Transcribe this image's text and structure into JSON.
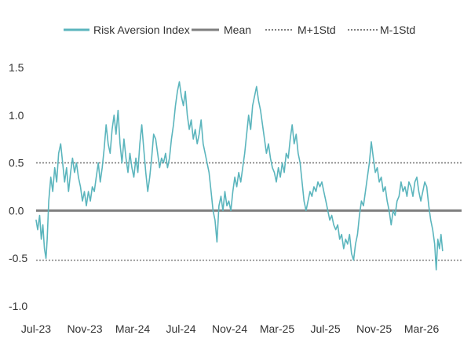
{
  "chart_data": {
    "type": "line",
    "title": "",
    "xlabel": "",
    "ylabel": "",
    "ylim": [
      -1.0,
      1.5
    ],
    "yticks": [
      -1.0,
      -0.5,
      0.0,
      0.5,
      1.0,
      1.5
    ],
    "ytick_labels": [
      "-1.0",
      "-0.5",
      "0.0",
      "0.5",
      "1.0",
      "1.5"
    ],
    "xlim": [
      "2023-07-01",
      "2026-06-10"
    ],
    "xticks": [
      {
        "label": "Jul-23",
        "date": "2023-07-01"
      },
      {
        "label": "Nov-23",
        "date": "2023-11-01"
      },
      {
        "label": "Mar-24",
        "date": "2024-03-01"
      },
      {
        "label": "Jul-24",
        "date": "2024-07-01"
      },
      {
        "label": "Nov-24",
        "date": "2024-11-01"
      },
      {
        "label": "Mar-25",
        "date": "2025-03-01"
      },
      {
        "label": "Jul-25",
        "date": "2025-07-01"
      },
      {
        "label": "Nov-25",
        "date": "2025-11-01"
      },
      {
        "label": "Mar-26",
        "date": "2026-03-01"
      }
    ],
    "grid": false,
    "legend_position": "top",
    "series": [
      {
        "name": "Risk Aversion Index",
        "color": "#5BB5BD",
        "style": "solid",
        "points": [
          [
            "2023-07-01",
            -0.1
          ],
          [
            "2023-07-05",
            -0.2
          ],
          [
            "2023-07-10",
            -0.05
          ],
          [
            "2023-07-14",
            -0.3
          ],
          [
            "2023-07-18",
            -0.15
          ],
          [
            "2023-07-22",
            -0.4
          ],
          [
            "2023-07-26",
            -0.5
          ],
          [
            "2023-07-29",
            -0.3
          ],
          [
            "2023-08-02",
            0.1
          ],
          [
            "2023-08-07",
            0.35
          ],
          [
            "2023-08-12",
            0.2
          ],
          [
            "2023-08-17",
            0.45
          ],
          [
            "2023-08-22",
            0.3
          ],
          [
            "2023-08-27",
            0.6
          ],
          [
            "2023-09-01",
            0.7
          ],
          [
            "2023-09-06",
            0.5
          ],
          [
            "2023-09-11",
            0.3
          ],
          [
            "2023-09-16",
            0.45
          ],
          [
            "2023-09-21",
            0.2
          ],
          [
            "2023-09-26",
            0.4
          ],
          [
            "2023-10-01",
            0.55
          ],
          [
            "2023-10-06",
            0.4
          ],
          [
            "2023-10-11",
            0.5
          ],
          [
            "2023-10-16",
            0.35
          ],
          [
            "2023-10-21",
            0.25
          ],
          [
            "2023-10-26",
            0.1
          ],
          [
            "2023-10-31",
            0.2
          ],
          [
            "2023-11-05",
            0.05
          ],
          [
            "2023-11-10",
            0.2
          ],
          [
            "2023-11-15",
            0.1
          ],
          [
            "2023-11-20",
            0.25
          ],
          [
            "2023-11-25",
            0.2
          ],
          [
            "2023-11-30",
            0.35
          ],
          [
            "2023-12-05",
            0.5
          ],
          [
            "2023-12-10",
            0.3
          ],
          [
            "2023-12-15",
            0.45
          ],
          [
            "2023-12-20",
            0.65
          ],
          [
            "2023-12-25",
            0.9
          ],
          [
            "2023-12-30",
            0.7
          ],
          [
            "2024-01-04",
            0.6
          ],
          [
            "2024-01-09",
            0.85
          ],
          [
            "2024-01-14",
            1.0
          ],
          [
            "2024-01-19",
            0.8
          ],
          [
            "2024-01-24",
            1.05
          ],
          [
            "2024-01-29",
            0.7
          ],
          [
            "2024-02-03",
            0.5
          ],
          [
            "2024-02-08",
            0.75
          ],
          [
            "2024-02-13",
            0.55
          ],
          [
            "2024-02-18",
            0.4
          ],
          [
            "2024-02-23",
            0.6
          ],
          [
            "2024-02-28",
            0.45
          ],
          [
            "2024-03-04",
            0.35
          ],
          [
            "2024-03-09",
            0.55
          ],
          [
            "2024-03-14",
            0.4
          ],
          [
            "2024-03-19",
            0.7
          ],
          [
            "2024-03-24",
            0.9
          ],
          [
            "2024-03-29",
            0.65
          ],
          [
            "2024-04-03",
            0.4
          ],
          [
            "2024-04-08",
            0.2
          ],
          [
            "2024-04-13",
            0.35
          ],
          [
            "2024-04-18",
            0.55
          ],
          [
            "2024-04-23",
            0.8
          ],
          [
            "2024-04-28",
            0.75
          ],
          [
            "2024-05-03",
            0.6
          ],
          [
            "2024-05-08",
            0.45
          ],
          [
            "2024-05-13",
            0.55
          ],
          [
            "2024-05-18",
            0.5
          ],
          [
            "2024-05-23",
            0.6
          ],
          [
            "2024-05-28",
            0.45
          ],
          [
            "2024-06-02",
            0.55
          ],
          [
            "2024-06-07",
            0.75
          ],
          [
            "2024-06-12",
            0.9
          ],
          [
            "2024-06-17",
            1.1
          ],
          [
            "2024-06-22",
            1.25
          ],
          [
            "2024-06-27",
            1.35
          ],
          [
            "2024-07-02",
            1.2
          ],
          [
            "2024-07-07",
            1.1
          ],
          [
            "2024-07-12",
            1.25
          ],
          [
            "2024-07-17",
            1.0
          ],
          [
            "2024-07-22",
            0.85
          ],
          [
            "2024-07-27",
            0.95
          ],
          [
            "2024-08-01",
            0.75
          ],
          [
            "2024-08-06",
            0.85
          ],
          [
            "2024-08-11",
            0.7
          ],
          [
            "2024-08-16",
            0.8
          ],
          [
            "2024-08-21",
            0.95
          ],
          [
            "2024-08-26",
            0.7
          ],
          [
            "2024-08-31",
            0.6
          ],
          [
            "2024-09-05",
            0.5
          ],
          [
            "2024-09-10",
            0.4
          ],
          [
            "2024-09-15",
            0.2
          ],
          [
            "2024-09-20",
            0.0
          ],
          [
            "2024-09-25",
            -0.1
          ],
          [
            "2024-09-30",
            -0.33
          ],
          [
            "2024-10-05",
            0.05
          ],
          [
            "2024-10-10",
            0.15
          ],
          [
            "2024-10-15",
            0.0
          ],
          [
            "2024-10-20",
            0.2
          ],
          [
            "2024-10-25",
            0.05
          ],
          [
            "2024-10-30",
            0.1
          ],
          [
            "2024-11-04",
            0.0
          ],
          [
            "2024-11-09",
            0.2
          ],
          [
            "2024-11-14",
            0.35
          ],
          [
            "2024-11-19",
            0.25
          ],
          [
            "2024-11-24",
            0.4
          ],
          [
            "2024-11-29",
            0.3
          ],
          [
            "2024-12-04",
            0.45
          ],
          [
            "2024-12-09",
            0.6
          ],
          [
            "2024-12-14",
            0.8
          ],
          [
            "2024-12-19",
            1.0
          ],
          [
            "2024-12-24",
            0.85
          ],
          [
            "2024-12-29",
            1.1
          ],
          [
            "2025-01-03",
            1.2
          ],
          [
            "2025-01-08",
            1.3
          ],
          [
            "2025-01-13",
            1.15
          ],
          [
            "2025-01-18",
            1.05
          ],
          [
            "2025-01-23",
            0.9
          ],
          [
            "2025-01-28",
            0.75
          ],
          [
            "2025-02-02",
            0.6
          ],
          [
            "2025-02-07",
            0.7
          ],
          [
            "2025-02-12",
            0.55
          ],
          [
            "2025-02-17",
            0.45
          ],
          [
            "2025-02-22",
            0.4
          ],
          [
            "2025-02-27",
            0.3
          ],
          [
            "2025-03-04",
            0.45
          ],
          [
            "2025-03-09",
            0.35
          ],
          [
            "2025-03-14",
            0.5
          ],
          [
            "2025-03-19",
            0.4
          ],
          [
            "2025-03-24",
            0.6
          ],
          [
            "2025-03-29",
            0.55
          ],
          [
            "2025-04-03",
            0.75
          ],
          [
            "2025-04-08",
            0.9
          ],
          [
            "2025-04-13",
            0.7
          ],
          [
            "2025-04-18",
            0.8
          ],
          [
            "2025-04-23",
            0.6
          ],
          [
            "2025-04-28",
            0.5
          ],
          [
            "2025-05-03",
            0.3
          ],
          [
            "2025-05-08",
            0.1
          ],
          [
            "2025-05-13",
            0.0
          ],
          [
            "2025-05-18",
            0.1
          ],
          [
            "2025-05-23",
            0.2
          ],
          [
            "2025-05-28",
            0.15
          ],
          [
            "2025-06-02",
            0.25
          ],
          [
            "2025-06-07",
            0.2
          ],
          [
            "2025-06-12",
            0.3
          ],
          [
            "2025-06-17",
            0.25
          ],
          [
            "2025-06-22",
            0.3
          ],
          [
            "2025-06-27",
            0.2
          ],
          [
            "2025-07-02",
            0.1
          ],
          [
            "2025-07-07",
            0.0
          ],
          [
            "2025-07-12",
            -0.1
          ],
          [
            "2025-07-17",
            -0.05
          ],
          [
            "2025-07-22",
            -0.15
          ],
          [
            "2025-07-27",
            -0.2
          ],
          [
            "2025-08-01",
            -0.15
          ],
          [
            "2025-08-06",
            -0.3
          ],
          [
            "2025-08-11",
            -0.25
          ],
          [
            "2025-08-16",
            -0.4
          ],
          [
            "2025-08-21",
            -0.3
          ],
          [
            "2025-08-26",
            -0.35
          ],
          [
            "2025-08-31",
            -0.25
          ],
          [
            "2025-09-05",
            -0.45
          ],
          [
            "2025-09-10",
            -0.52
          ],
          [
            "2025-09-15",
            -0.35
          ],
          [
            "2025-09-20",
            -0.25
          ],
          [
            "2025-09-25",
            -0.05
          ],
          [
            "2025-09-30",
            0.1
          ],
          [
            "2025-10-05",
            0.05
          ],
          [
            "2025-10-10",
            0.2
          ],
          [
            "2025-10-15",
            0.35
          ],
          [
            "2025-10-20",
            0.5
          ],
          [
            "2025-10-25",
            0.72
          ],
          [
            "2025-10-30",
            0.55
          ],
          [
            "2025-11-04",
            0.4
          ],
          [
            "2025-11-09",
            0.45
          ],
          [
            "2025-11-14",
            0.3
          ],
          [
            "2025-11-19",
            0.35
          ],
          [
            "2025-11-24",
            0.2
          ],
          [
            "2025-11-29",
            0.25
          ],
          [
            "2025-12-04",
            0.1
          ],
          [
            "2025-12-09",
            0.0
          ],
          [
            "2025-12-14",
            -0.15
          ],
          [
            "2025-12-19",
            0.0
          ],
          [
            "2025-12-24",
            -0.05
          ],
          [
            "2025-12-29",
            0.1
          ],
          [
            "2026-01-03",
            0.15
          ],
          [
            "2026-01-08",
            0.3
          ],
          [
            "2026-01-13",
            0.2
          ],
          [
            "2026-01-18",
            0.25
          ],
          [
            "2026-01-23",
            0.15
          ],
          [
            "2026-01-28",
            0.3
          ],
          [
            "2026-02-02",
            0.25
          ],
          [
            "2026-02-07",
            0.15
          ],
          [
            "2026-02-12",
            0.3
          ],
          [
            "2026-02-17",
            0.35
          ],
          [
            "2026-02-22",
            0.2
          ],
          [
            "2026-02-27",
            0.1
          ],
          [
            "2026-03-04",
            0.2
          ],
          [
            "2026-03-09",
            0.3
          ],
          [
            "2026-03-14",
            0.25
          ],
          [
            "2026-03-19",
            0.05
          ],
          [
            "2026-03-24",
            -0.1
          ],
          [
            "2026-03-29",
            -0.2
          ],
          [
            "2026-04-03",
            -0.35
          ],
          [
            "2026-04-07",
            -0.62
          ],
          [
            "2026-04-11",
            -0.3
          ],
          [
            "2026-04-15",
            -0.4
          ],
          [
            "2026-04-19",
            -0.25
          ],
          [
            "2026-04-23",
            -0.42
          ]
        ]
      },
      {
        "name": "Mean",
        "color": "#7F7F7F",
        "style": "solid",
        "value": 0.0
      },
      {
        "name": "M+1Std",
        "color": "#7F7F7F",
        "style": "dotted",
        "value": 0.5
      },
      {
        "name": "M-1Std",
        "color": "#7F7F7F",
        "style": "dotted",
        "value": -0.52
      }
    ]
  }
}
